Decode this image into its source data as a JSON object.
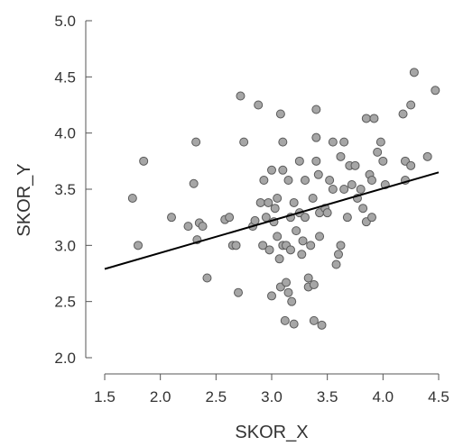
{
  "chart_data": {
    "type": "scatter",
    "title": "",
    "xlabel": "SKOR_X",
    "ylabel": "SKOR_Y",
    "xlim": [
      1.5,
      4.5
    ],
    "ylim": [
      2.0,
      5.0
    ],
    "xticks": [
      "1.5",
      "2.0",
      "2.5",
      "3.0",
      "3.5",
      "4.0",
      "4.5"
    ],
    "yticks": [
      "2.0",
      "2.5",
      "3.0",
      "3.5",
      "4.0",
      "4.5",
      "5.0"
    ],
    "grid": false,
    "colors": {
      "point_fill": "#a6a6a6",
      "point_stroke": "#5a5a5a",
      "axis": "#555555",
      "fit_line": "#000000",
      "text": "#333333"
    },
    "points": [
      [
        1.75,
        3.42
      ],
      [
        1.8,
        3.0
      ],
      [
        1.85,
        3.75
      ],
      [
        2.1,
        3.25
      ],
      [
        2.25,
        3.17
      ],
      [
        2.3,
        3.55
      ],
      [
        2.32,
        3.92
      ],
      [
        2.33,
        3.05
      ],
      [
        2.35,
        3.2
      ],
      [
        2.38,
        3.17
      ],
      [
        2.42,
        2.71
      ],
      [
        2.58,
        3.23
      ],
      [
        2.62,
        3.25
      ],
      [
        2.65,
        3.0
      ],
      [
        2.68,
        3.0
      ],
      [
        2.7,
        2.58
      ],
      [
        2.72,
        4.33
      ],
      [
        2.75,
        3.92
      ],
      [
        2.83,
        3.17
      ],
      [
        2.85,
        3.22
      ],
      [
        2.88,
        4.25
      ],
      [
        2.9,
        3.38
      ],
      [
        2.92,
        3.0
      ],
      [
        2.93,
        3.58
      ],
      [
        2.95,
        3.25
      ],
      [
        2.97,
        3.38
      ],
      [
        2.98,
        2.96
      ],
      [
        3.0,
        2.55
      ],
      [
        3.0,
        3.67
      ],
      [
        3.02,
        3.21
      ],
      [
        3.03,
        3.33
      ],
      [
        3.05,
        3.08
      ],
      [
        3.05,
        3.42
      ],
      [
        3.07,
        2.88
      ],
      [
        3.08,
        4.17
      ],
      [
        3.08,
        2.63
      ],
      [
        3.1,
        3.67
      ],
      [
        3.1,
        3.92
      ],
      [
        3.1,
        3.0
      ],
      [
        3.12,
        2.33
      ],
      [
        3.13,
        2.67
      ],
      [
        3.13,
        3.0
      ],
      [
        3.15,
        3.58
      ],
      [
        3.15,
        2.58
      ],
      [
        3.17,
        3.25
      ],
      [
        3.17,
        2.96
      ],
      [
        3.18,
        2.5
      ],
      [
        3.2,
        3.38
      ],
      [
        3.2,
        2.3
      ],
      [
        3.22,
        3.13
      ],
      [
        3.25,
        3.75
      ],
      [
        3.25,
        3.29
      ],
      [
        3.27,
        2.92
      ],
      [
        3.28,
        3.04
      ],
      [
        3.3,
        3.25
      ],
      [
        3.3,
        3.58
      ],
      [
        3.33,
        2.71
      ],
      [
        3.33,
        2.63
      ],
      [
        3.35,
        3.0
      ],
      [
        3.37,
        3.42
      ],
      [
        3.38,
        2.65
      ],
      [
        3.38,
        2.33
      ],
      [
        3.4,
        3.96
      ],
      [
        3.4,
        4.21
      ],
      [
        3.4,
        3.75
      ],
      [
        3.42,
        3.63
      ],
      [
        3.43,
        3.29
      ],
      [
        3.43,
        3.08
      ],
      [
        3.45,
        2.29
      ],
      [
        3.48,
        3.33
      ],
      [
        3.5,
        3.29
      ],
      [
        3.52,
        3.58
      ],
      [
        3.55,
        3.5
      ],
      [
        3.55,
        3.92
      ],
      [
        3.58,
        2.83
      ],
      [
        3.6,
        2.92
      ],
      [
        3.62,
        3.79
      ],
      [
        3.62,
        3.0
      ],
      [
        3.65,
        3.5
      ],
      [
        3.65,
        3.92
      ],
      [
        3.68,
        3.25
      ],
      [
        3.7,
        3.71
      ],
      [
        3.72,
        3.54
      ],
      [
        3.75,
        3.71
      ],
      [
        3.77,
        3.42
      ],
      [
        3.8,
        3.5
      ],
      [
        3.82,
        3.33
      ],
      [
        3.85,
        4.13
      ],
      [
        3.85,
        3.21
      ],
      [
        3.88,
        3.63
      ],
      [
        3.9,
        3.25
      ],
      [
        3.9,
        3.58
      ],
      [
        3.92,
        4.13
      ],
      [
        3.95,
        3.83
      ],
      [
        3.98,
        3.92
      ],
      [
        4.0,
        3.75
      ],
      [
        4.02,
        3.54
      ],
      [
        4.18,
        4.17
      ],
      [
        4.2,
        3.58
      ],
      [
        4.2,
        3.75
      ],
      [
        4.25,
        4.25
      ],
      [
        4.25,
        3.71
      ],
      [
        4.28,
        4.54
      ],
      [
        4.4,
        3.79
      ],
      [
        4.47,
        4.38
      ]
    ],
    "fit_line": {
      "x": [
        1.5,
        4.5
      ],
      "y": [
        2.79,
        3.65
      ]
    }
  }
}
